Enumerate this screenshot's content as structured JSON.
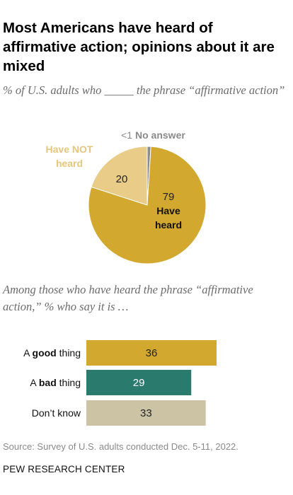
{
  "title": "Most Americans have heard of affirmative action; opinions about it are mixed",
  "pie_subtitle": "% of U.S. adults who _____ the phrase “affirmative action”",
  "bar_subtitle": "Among those who have heard the phrase “affirmative action,” % who say it is …",
  "source": "Source: Survey of U.S. adults conducted Dec. 5-11, 2022.",
  "organization": "PEW RESEARCH CENTER",
  "chart_data": [
    {
      "type": "pie",
      "slices": [
        {
          "label": "Have heard",
          "value": 79,
          "value_label": "79",
          "color": "#d3a82f"
        },
        {
          "label": "Have NOT heard",
          "value": 20,
          "value_label": "20",
          "color": "#e8cc87"
        },
        {
          "label": "No answer",
          "value": 1,
          "value_label": "<1",
          "color": "#8c8c8c"
        }
      ]
    },
    {
      "type": "bar",
      "orientation": "horizontal",
      "categories": [
        {
          "prefix": "A ",
          "bold": "good",
          "suffix": " thing"
        },
        {
          "prefix": "A ",
          "bold": "bad",
          "suffix": " thing"
        },
        {
          "prefix": "Don’t know",
          "bold": "",
          "suffix": ""
        }
      ],
      "values": [
        36,
        29,
        33
      ],
      "colors": [
        "#d3a82f",
        "#2a7a6e",
        "#cbc3a3"
      ],
      "xlim": [
        0,
        36
      ]
    }
  ]
}
